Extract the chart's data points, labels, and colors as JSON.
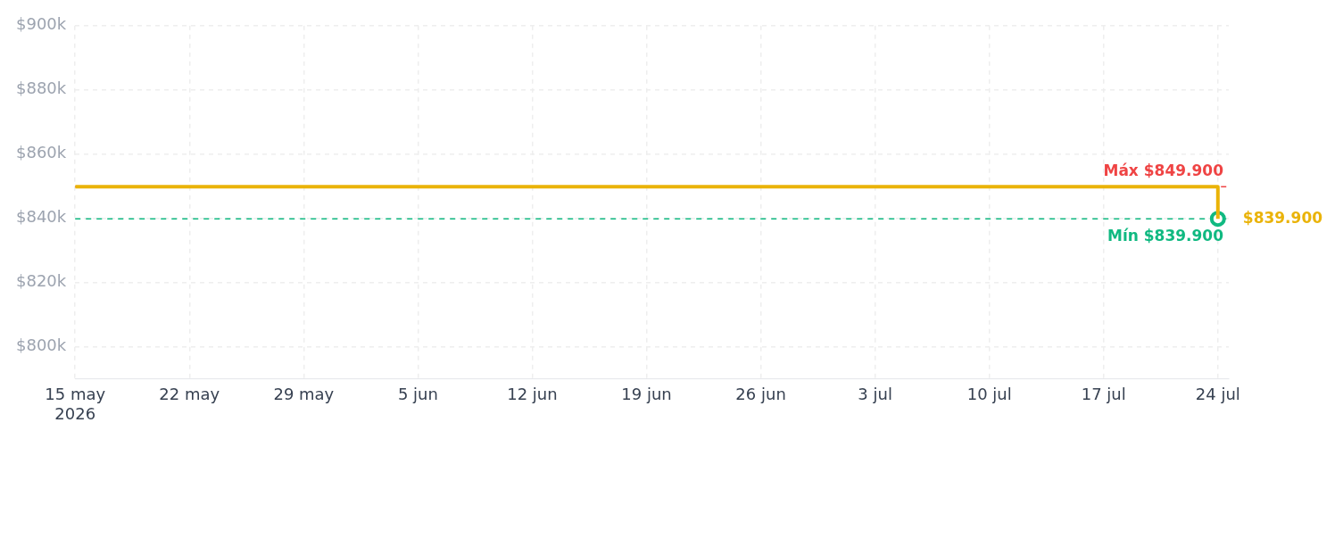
{
  "chart_data": {
    "type": "step",
    "xlim": [
      "2026-05-15",
      "2026-07-24T16:00"
    ],
    "xticks": [
      {
        "value": "2026-05-15",
        "label": "15 may\n2026"
      },
      {
        "value": "2026-05-22",
        "label": "22 may"
      },
      {
        "value": "2026-05-29",
        "label": "29 may"
      },
      {
        "value": "2026-06-05",
        "label": "5 jun"
      },
      {
        "value": "2026-06-12",
        "label": "12 jun"
      },
      {
        "value": "2026-06-19",
        "label": "19 jun"
      },
      {
        "value": "2026-06-26",
        "label": "26 jun"
      },
      {
        "value": "2026-07-03",
        "label": "3 jul"
      },
      {
        "value": "2026-07-10",
        "label": "10 jul"
      },
      {
        "value": "2026-07-17",
        "label": "17 jul"
      },
      {
        "value": "2026-07-24",
        "label": "24 jul"
      }
    ],
    "ylim": [
      790000,
      900000
    ],
    "yticks": [
      {
        "value": 800000,
        "label": "$800k"
      },
      {
        "value": 820000,
        "label": "$820k"
      },
      {
        "value": 840000,
        "label": "$840k"
      },
      {
        "value": 860000,
        "label": "$860k"
      },
      {
        "value": 880000,
        "label": "$880k"
      },
      {
        "value": 900000,
        "label": "$900k"
      }
    ],
    "grid": true,
    "line_style": "solid",
    "series": [
      {
        "color": "#eab308",
        "x": [
          "2026-05-15",
          "2026-07-24"
        ],
        "values": [
          849900,
          839900
        ],
        "marker": "none"
      },
      {
        "type": "scatter",
        "color": "#10b981",
        "x": [
          "2026-07-24"
        ],
        "values": [
          839900
        ],
        "marker": "circle"
      }
    ],
    "ref_lines": [
      {
        "axis": "y",
        "value": 849900,
        "label": "Máx $849.900",
        "color": "#ef4444",
        "line_style": "dashed"
      },
      {
        "axis": "y",
        "value": 839900,
        "label": "Mín $839.900",
        "color": "#10b981",
        "line_style": "dashed"
      }
    ],
    "annotations": [
      {
        "text": "$839.900",
        "x": "2026-07-24",
        "y": 839900
      }
    ]
  }
}
